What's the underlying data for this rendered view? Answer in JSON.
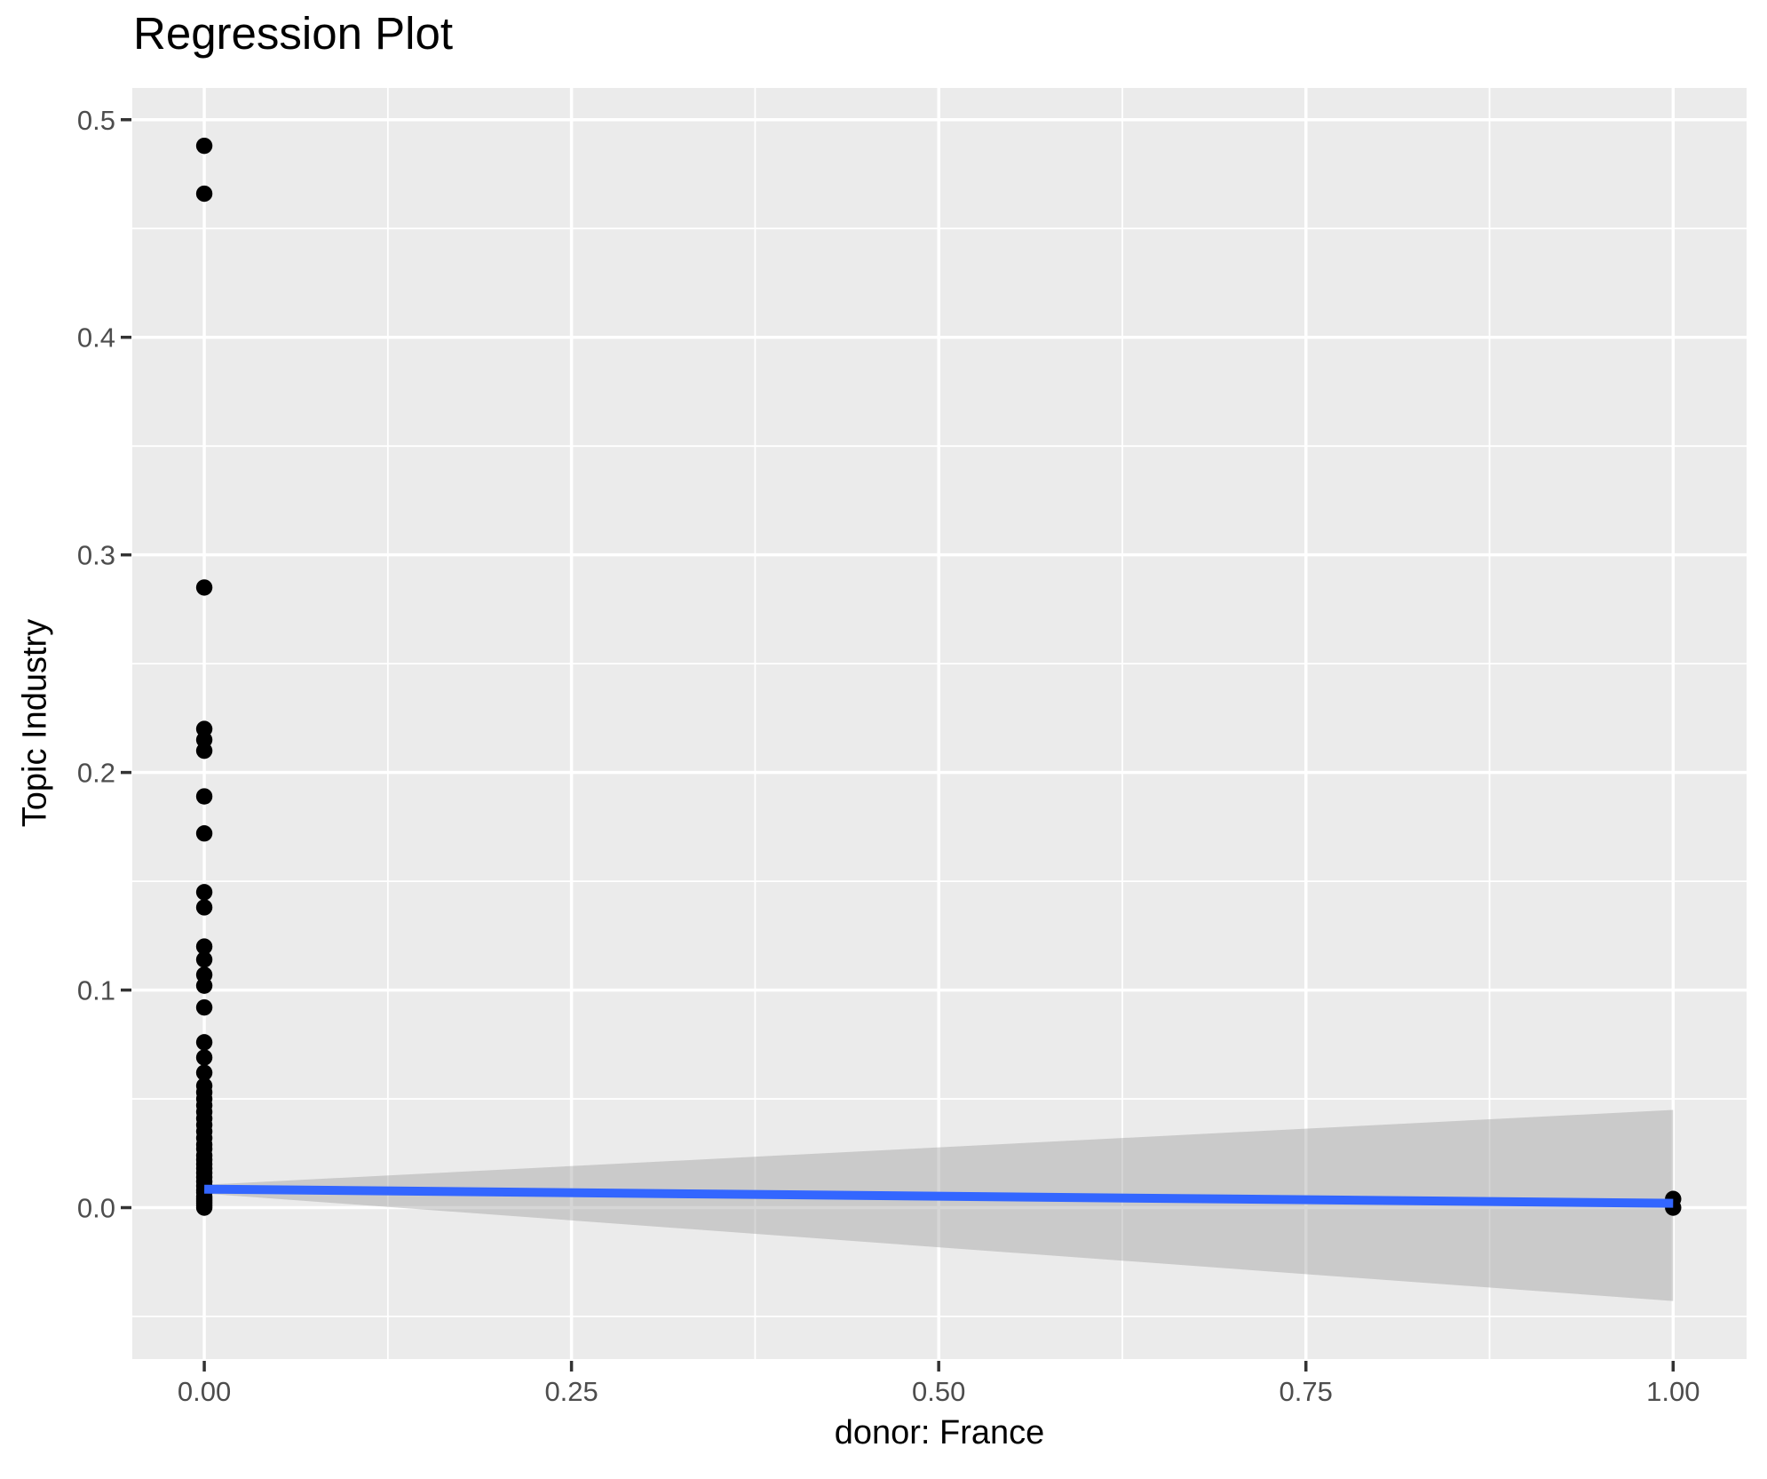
{
  "title": "Regression Plot",
  "chart_data": {
    "type": "scatter",
    "title": "Regression Plot",
    "xlabel": "donor: France",
    "ylabel": "Topic Industry",
    "xlim": [
      -0.049,
      1.05
    ],
    "ylim": [
      -0.0696,
      0.5146
    ],
    "x_ticks": [
      0.0,
      0.25,
      0.5,
      0.75,
      1.0
    ],
    "x_tick_labels": [
      "0.00",
      "0.25",
      "0.50",
      "0.75",
      "1.00"
    ],
    "y_ticks": [
      0.0,
      0.1,
      0.2,
      0.3,
      0.4,
      0.5
    ],
    "y_tick_labels": [
      "0.0",
      "0.1",
      "0.2",
      "0.3",
      "0.4",
      "0.5"
    ],
    "grid": true,
    "legend": "none",
    "points": [
      [
        0,
        0.488
      ],
      [
        0,
        0.466
      ],
      [
        0,
        0.285
      ],
      [
        0,
        0.22
      ],
      [
        0,
        0.215
      ],
      [
        0,
        0.21
      ],
      [
        0,
        0.189
      ],
      [
        0,
        0.172
      ],
      [
        0,
        0.145
      ],
      [
        0,
        0.138
      ],
      [
        0,
        0.12
      ],
      [
        0,
        0.114
      ],
      [
        0,
        0.107
      ],
      [
        0,
        0.102
      ],
      [
        0,
        0.092
      ],
      [
        0,
        0.076
      ],
      [
        0,
        0.069
      ],
      [
        0,
        0.062
      ],
      [
        0,
        0.056
      ],
      [
        0,
        0.053
      ],
      [
        0,
        0.05
      ],
      [
        0,
        0.047
      ],
      [
        0,
        0.044
      ],
      [
        0,
        0.041
      ],
      [
        0,
        0.038
      ],
      [
        0,
        0.035
      ],
      [
        0,
        0.032
      ],
      [
        0,
        0.029
      ],
      [
        0,
        0.027
      ],
      [
        0,
        0.024
      ],
      [
        0,
        0.022
      ],
      [
        0,
        0.02
      ],
      [
        0,
        0.018
      ],
      [
        0,
        0.016
      ],
      [
        0,
        0.014
      ],
      [
        0,
        0.012
      ],
      [
        0,
        0.01
      ],
      [
        0,
        0.008
      ],
      [
        0,
        0.007
      ],
      [
        0,
        0.005
      ],
      [
        0,
        0.004
      ],
      [
        0,
        0.003
      ],
      [
        0,
        0.002
      ],
      [
        0,
        0.001
      ],
      [
        0,
        0.0
      ],
      [
        1,
        0.004
      ],
      [
        1,
        0.0
      ]
    ],
    "regression_line": {
      "x": [
        0,
        1
      ],
      "y": [
        0.0085,
        0.002
      ]
    },
    "confidence_band": {
      "x": [
        0,
        1
      ],
      "upper": [
        0.0105,
        0.0449
      ],
      "lower": [
        0.0065,
        -0.0429
      ]
    },
    "colors": {
      "panel_background": "#EBEBEB",
      "gridline": "#FFFFFF",
      "point": "#000000",
      "regression_line": "#3366FF",
      "band_fill": "#999999",
      "band_opacity": "0.4",
      "tick_mark": "#333333",
      "tick_text": "#4D4D4D",
      "title_text": "#000000"
    }
  }
}
